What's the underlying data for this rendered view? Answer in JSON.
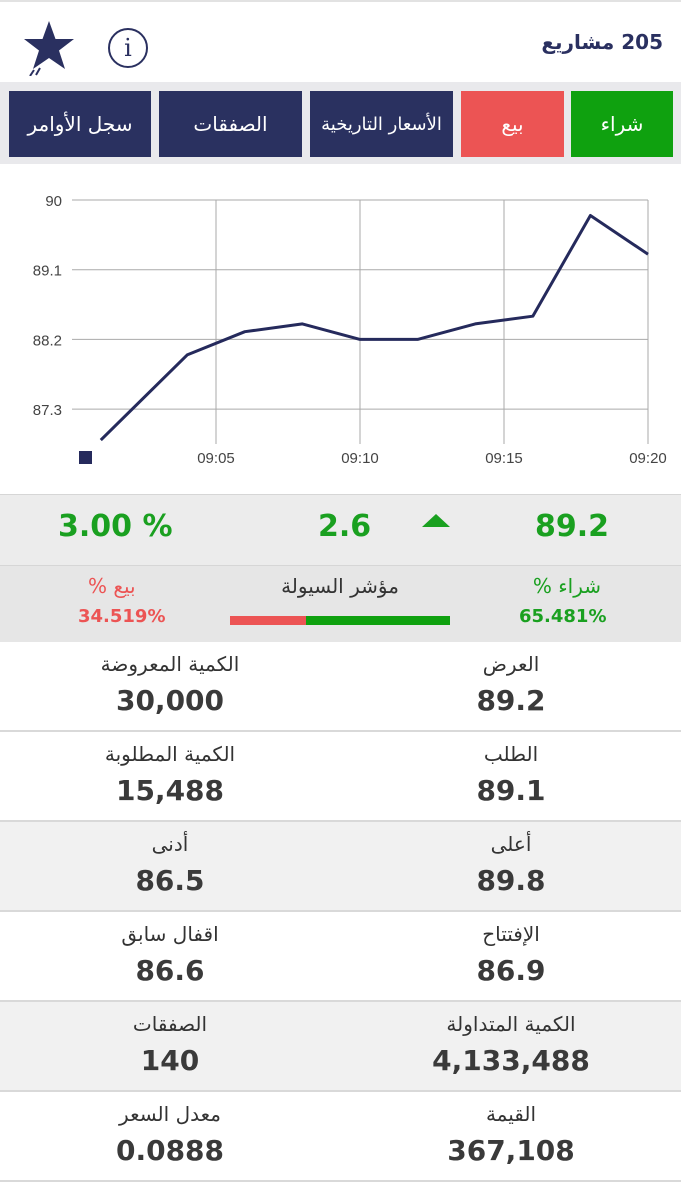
{
  "header": {
    "title": "205 مشاريع"
  },
  "actions": {
    "buy": "شراء",
    "sell": "بيع",
    "history": "الأسعار التاريخية",
    "deals": "الصفقات",
    "orders": "سجل الأوامر"
  },
  "colors": {
    "navy": "#2a3160",
    "green": "#1aa020",
    "red": "#ec5454"
  },
  "chart_data": {
    "type": "line",
    "x": [
      "09:01",
      "09:04",
      "09:06",
      "09:08",
      "09:10",
      "09:12",
      "09:14",
      "09:16",
      "09:18",
      "09:20"
    ],
    "x_ticks": [
      "09:05",
      "09:10",
      "09:15",
      "09:20"
    ],
    "y_ticks": [
      "87.3",
      "88.2",
      "89.1",
      "90"
    ],
    "values": [
      86.9,
      88.0,
      88.3,
      88.4,
      88.2,
      88.2,
      88.4,
      88.5,
      89.8,
      89.3
    ],
    "ylim": [
      86.85,
      90
    ],
    "grid": true
  },
  "quote": {
    "last_price": "89.2",
    "change": "2.6",
    "change_pct": "3.00 %"
  },
  "liquidity": {
    "title": "مؤشر السيولة",
    "buy_label": "شراء %",
    "buy_value": "65.481%",
    "sell_label": "بيع %",
    "sell_value": "34.519%",
    "buy_pct": 65.481
  },
  "stats": [
    {
      "right_label": "العرض",
      "right_value": "89.2",
      "left_label": "الكمية المعروضة",
      "left_value": "30,000"
    },
    {
      "right_label": "الطلب",
      "right_value": "89.1",
      "left_label": "الكمية المطلوبة",
      "left_value": "15,488"
    },
    {
      "right_label": "أعلى",
      "right_value": "89.8",
      "left_label": "أدنى",
      "left_value": "86.5"
    },
    {
      "right_label": "الإفتتاح",
      "right_value": "86.9",
      "left_label": "اقفال سابق",
      "left_value": "86.6"
    },
    {
      "right_label": "الكمية المتداولة",
      "right_value": "4,133,488",
      "left_label": "الصفقات",
      "left_value": "140"
    },
    {
      "right_label": "القيمة",
      "right_value": "367,108",
      "left_label": "معدل السعر",
      "left_value": "0.0888"
    }
  ]
}
